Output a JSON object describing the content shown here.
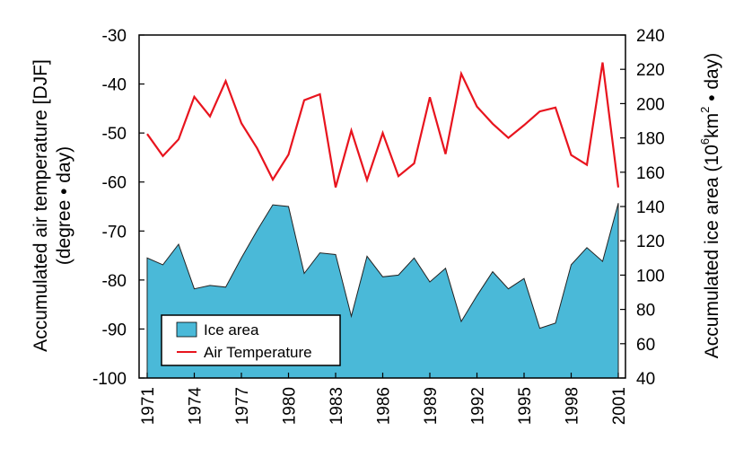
{
  "chart_data": {
    "type": "area+line",
    "x_ticks": [
      "1971",
      "1974",
      "1977",
      "1980",
      "1983",
      "1986",
      "1989",
      "1992",
      "1995",
      "1998",
      "2001"
    ],
    "left_axis": {
      "label_line1": "Accumulated air temperature [DJF]",
      "label_line2": "(degree • day)",
      "ticks": [
        "-30",
        "-40",
        "-50",
        "-60",
        "-70",
        "-80",
        "-90",
        "-100"
      ],
      "ylim": [
        -100,
        -30
      ]
    },
    "right_axis": {
      "label_pre": "Accumulated ice area (10",
      "label_sup1": "6",
      "label_mid": "km",
      "label_sup2": "2",
      "label_post": " • day)",
      "ticks": [
        "240",
        "220",
        "200",
        "180",
        "160",
        "140",
        "120",
        "100",
        "80",
        "60",
        "40"
      ],
      "ylim": [
        40,
        240
      ]
    },
    "legend": {
      "ice": "Ice area",
      "temp": "Air Temperature"
    },
    "series": [
      {
        "name": "Ice area",
        "axis": "right",
        "color": "#4ab9d8",
        "x": [
          1971,
          1972,
          1973,
          1974,
          1975,
          1976,
          1977,
          1978,
          1979,
          1980,
          1981,
          1982,
          1983,
          1984,
          1985,
          1986,
          1987,
          1988,
          1989,
          1990,
          1991,
          1992,
          1993,
          1994,
          1995,
          1996,
          1997,
          1998,
          1999,
          2000,
          2001
        ],
        "values": [
          110,
          106,
          118,
          92,
          94,
          93,
          110,
          126,
          141,
          140,
          101,
          113,
          112,
          76,
          111,
          99,
          100,
          110,
          96,
          104,
          73,
          88,
          102,
          92,
          98,
          69,
          72,
          106,
          116,
          108,
          142
        ]
      },
      {
        "name": "Air Temperature",
        "axis": "left",
        "color": "#e8141e",
        "x": [
          1971,
          1972,
          1973,
          1974,
          1975,
          1976,
          1977,
          1978,
          1979,
          1980,
          1981,
          1982,
          1983,
          1984,
          1985,
          1986,
          1987,
          1988,
          1989,
          1990,
          1991,
          1992,
          1993,
          1994,
          1995,
          1996,
          1997,
          1998,
          1999,
          2000,
          2001
        ],
        "values": [
          -50.2,
          -54.7,
          -51.3,
          -42.6,
          -46.6,
          -39.4,
          -48.0,
          -53.1,
          -59.5,
          -54.4,
          -43.3,
          -42.1,
          -61.1,
          -49.5,
          -59.6,
          -50.0,
          -58.8,
          -56.2,
          -42.7,
          -54.3,
          -37.9,
          -44.6,
          -48.1,
          -51.0,
          -48.4,
          -45.6,
          -44.8,
          -54.5,
          -56.5,
          -35.6,
          -61.1
        ]
      }
    ]
  }
}
